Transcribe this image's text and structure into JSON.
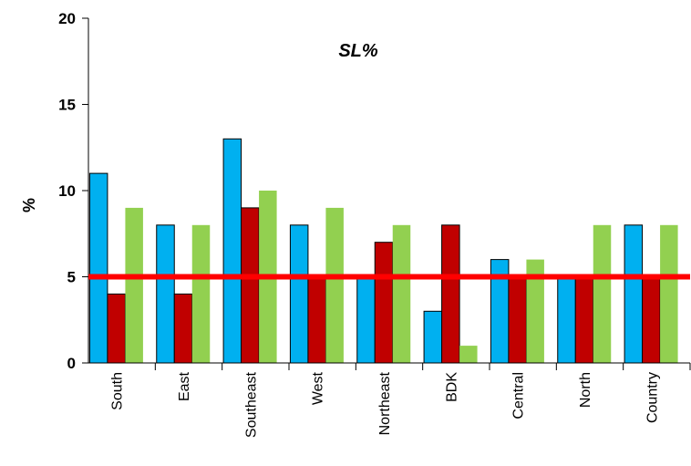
{
  "chart_data": {
    "type": "bar",
    "title": "SL%",
    "y_label": "%",
    "categories": [
      "South",
      "East",
      "Southeast",
      "West",
      "Northeast",
      "BDK",
      "Central",
      "North",
      "Country"
    ],
    "series": [
      {
        "color": "#00b0f0",
        "values": [
          11,
          8,
          13,
          8,
          5,
          3,
          6,
          5,
          8
        ]
      },
      {
        "color": "#c00000",
        "values": [
          4,
          4,
          9,
          5,
          7,
          8,
          5,
          5,
          5
        ]
      },
      {
        "color": "#92d050",
        "values": [
          9,
          8,
          10,
          9,
          8,
          1,
          6,
          8,
          8
        ]
      }
    ],
    "reference_line": {
      "value": 5,
      "color": "#ff0000"
    },
    "ylim": [
      0,
      20
    ],
    "yticks": [
      0,
      5,
      10,
      15,
      20
    ],
    "grid": false
  }
}
